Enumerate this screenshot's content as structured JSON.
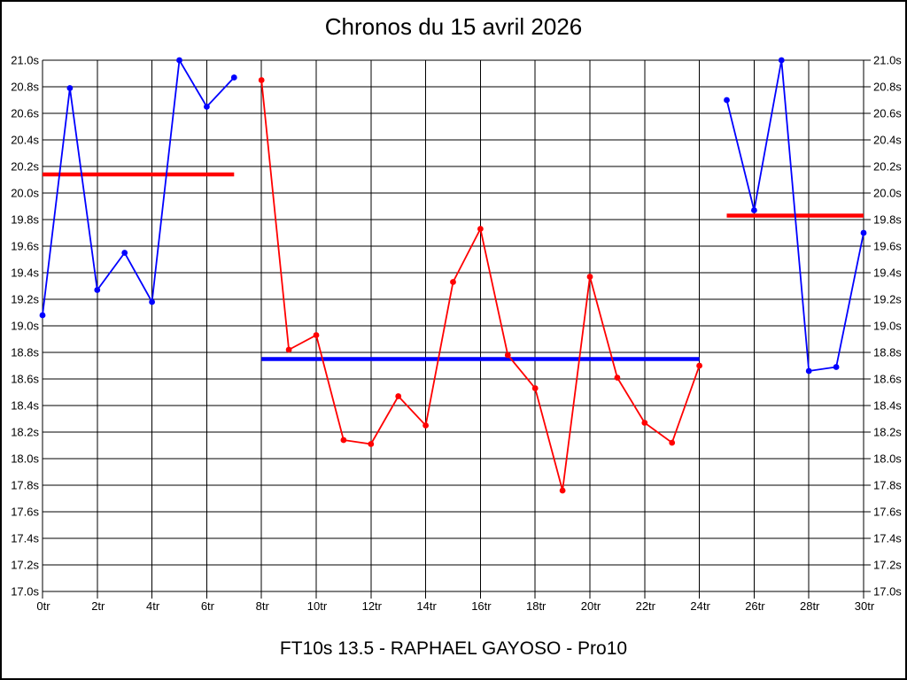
{
  "header": {
    "title": "Chronos du 15 avril 2026"
  },
  "footer": {
    "caption": "FT10s 13.5 - RAPHAEL GAYOSO - Pro10"
  },
  "chart_data": {
    "type": "line",
    "title": "Chronos du 15 avril 2026",
    "caption": "FT10s 13.5 - RAPHAEL GAYOSO - Pro10",
    "xlabel": "",
    "ylabel": "",
    "xlim": [
      0,
      30
    ],
    "ylim": [
      17.0,
      21.0
    ],
    "x_tick_step": 2,
    "y_tick_step": 0.2,
    "x_unit": "tr",
    "y_unit": "s",
    "grid": true,
    "legend": "none",
    "x_tick_labels": [
      "0tr",
      "2tr",
      "4tr",
      "6tr",
      "8tr",
      "10tr",
      "12tr",
      "14tr",
      "16tr",
      "18tr",
      "20tr",
      "22tr",
      "24tr",
      "26tr",
      "28tr",
      "30tr"
    ],
    "y_tick_labels": [
      "21.0s",
      "20.8s",
      "20.6s",
      "20.4s",
      "20.2s",
      "20.0s",
      "19.8s",
      "19.6s",
      "19.4s",
      "19.2s",
      "19.0s",
      "18.8s",
      "18.6s",
      "18.4s",
      "18.2s",
      "18.0s",
      "17.8s",
      "17.6s",
      "17.4s",
      "17.2s",
      "17.0s"
    ],
    "series": [
      {
        "name": "chronos-blue-segment-1",
        "color": "#0000ff",
        "x": [
          0,
          1,
          2,
          3,
          4,
          5,
          6,
          7
        ],
        "values": [
          19.08,
          20.79,
          19.27,
          19.55,
          19.18,
          21.0,
          20.65,
          20.87
        ]
      },
      {
        "name": "chronos-red-segment",
        "color": "#ff0000",
        "x": [
          8,
          9,
          10,
          11,
          12,
          13,
          14,
          15,
          16,
          17,
          18,
          19,
          20,
          21,
          22,
          23,
          24
        ],
        "values": [
          20.85,
          18.82,
          18.93,
          18.14,
          18.11,
          18.47,
          18.25,
          19.33,
          19.73,
          18.78,
          18.53,
          17.76,
          19.37,
          18.61,
          18.27,
          18.12,
          18.7
        ]
      },
      {
        "name": "chronos-blue-segment-2",
        "color": "#0000ff",
        "x": [
          25,
          26,
          27,
          28,
          29,
          30
        ],
        "values": [
          20.7,
          19.87,
          21.0,
          18.66,
          18.69,
          19.7
        ]
      }
    ],
    "reference_lines": [
      {
        "name": "average-line-red-1",
        "color": "#ff0000",
        "value": 20.14,
        "x_start": 0,
        "x_end": 7
      },
      {
        "name": "average-line-blue",
        "color": "#0000ff",
        "value": 18.75,
        "x_start": 8,
        "x_end": 24
      },
      {
        "name": "average-line-red-2",
        "color": "#ff0000",
        "value": 19.83,
        "x_start": 25,
        "x_end": 30
      }
    ],
    "colors": {
      "blue_series": "#0000ff",
      "red_series": "#ff0000",
      "grid": "#000000",
      "background": "#ffffff"
    }
  }
}
